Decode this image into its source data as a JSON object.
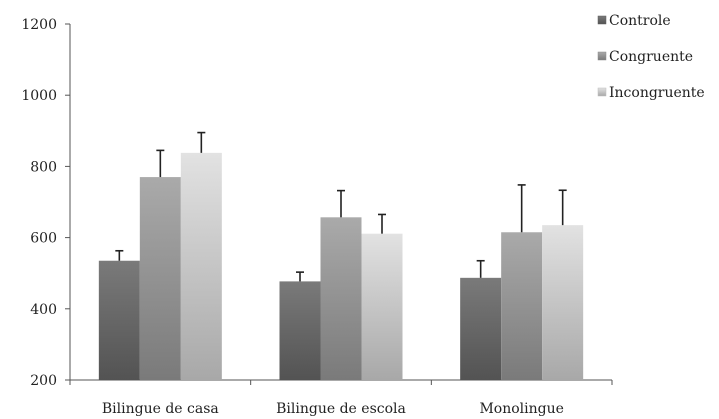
{
  "chart_data": {
    "type": "bar",
    "title": "",
    "xlabel": "",
    "ylabel": "",
    "ylim": [
      200,
      1200
    ],
    "yticks": [
      200,
      400,
      600,
      800,
      1000,
      1200
    ],
    "grid": false,
    "legend_position": "top-right",
    "categories": [
      "Bilingue de casa",
      "Bilingue de escola",
      "Monolingue"
    ],
    "series": [
      {
        "name": "Controle",
        "color": "#6e6e6e",
        "values": [
          535,
          477,
          487
        ],
        "errors": [
          28,
          26,
          48
        ]
      },
      {
        "name": "Congruente",
        "color": "#a3a3a3",
        "values": [
          770,
          657,
          615
        ],
        "errors": [
          75,
          75,
          133
        ]
      },
      {
        "name": "Incongruente",
        "color": "#e0e0e0",
        "values": [
          838,
          611,
          635
        ],
        "errors": [
          57,
          54,
          98
        ]
      }
    ]
  }
}
